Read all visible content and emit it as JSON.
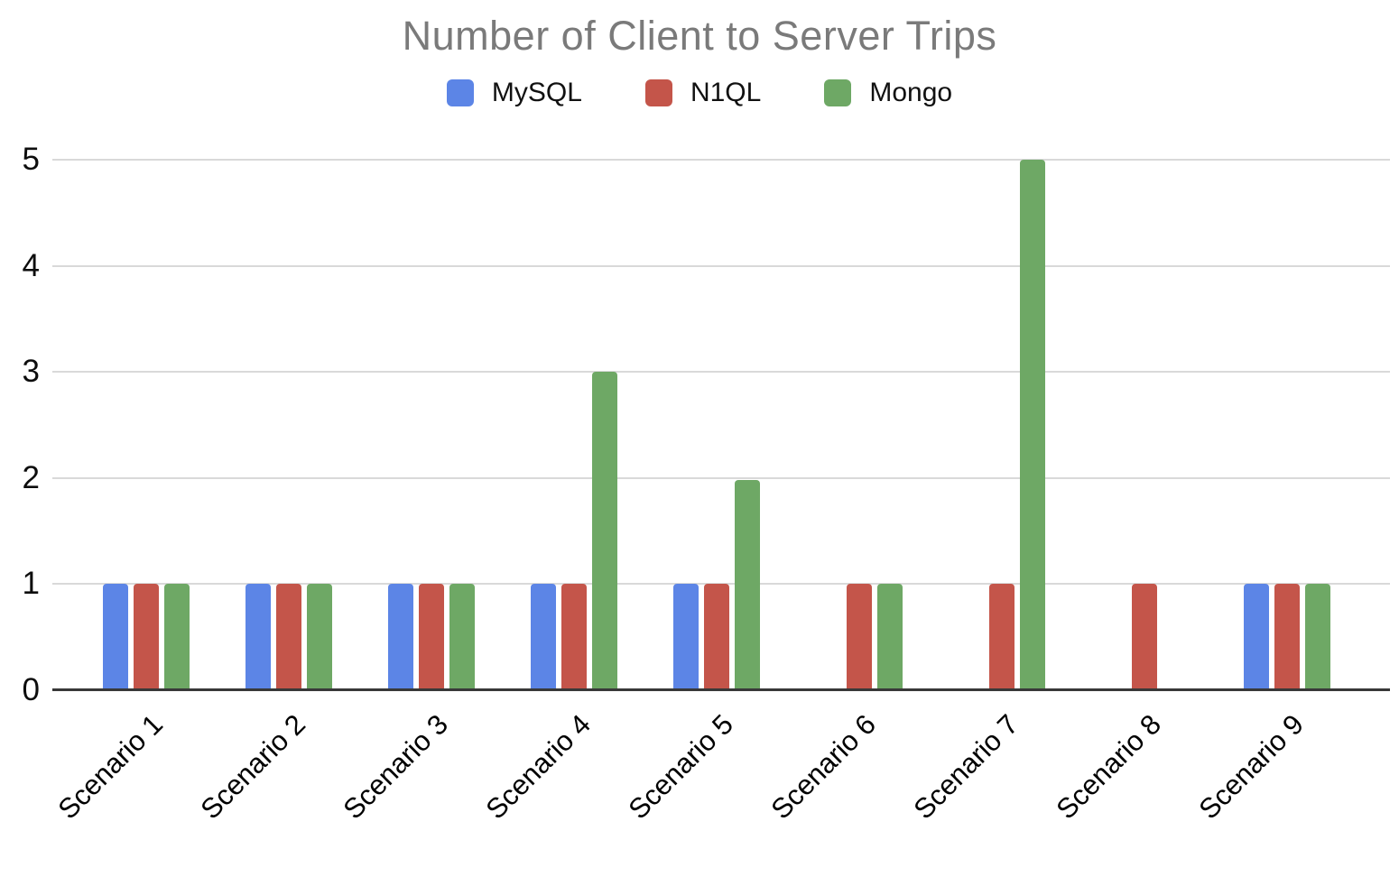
{
  "chart_data": {
    "type": "bar",
    "title": "Number of Client to Server Trips",
    "categories": [
      "Scenario 1",
      "Scenario 2",
      "Scenario 3",
      "Scenario 4",
      "Scenario 5",
      "Scenario 6",
      "Scenario 7",
      "Scenario 8",
      "Scenario 9"
    ],
    "series": [
      {
        "name": "MySQL",
        "color": "#5c85e6",
        "values": [
          1,
          1,
          1,
          1,
          1,
          0,
          0,
          0,
          1
        ]
      },
      {
        "name": "N1QL",
        "color": "#c4554a",
        "values": [
          1,
          1,
          1,
          1,
          1,
          1,
          1,
          1,
          1
        ]
      },
      {
        "name": "Mongo",
        "color": "#6ea865",
        "values": [
          1,
          1,
          1,
          3,
          1.98,
          1,
          5,
          0,
          1
        ]
      }
    ],
    "xlabel": "",
    "ylabel": "",
    "ylim": [
      0,
      5
    ],
    "yticks": [
      0,
      1,
      2,
      3,
      4,
      5
    ],
    "grid": true,
    "legend_position": "top",
    "colors": {
      "title_color": "#7a7a7a",
      "axis_line_color": "#383838",
      "gridline_color": "#d9d9d9",
      "tick_label_color": "#0d0d0d"
    }
  }
}
